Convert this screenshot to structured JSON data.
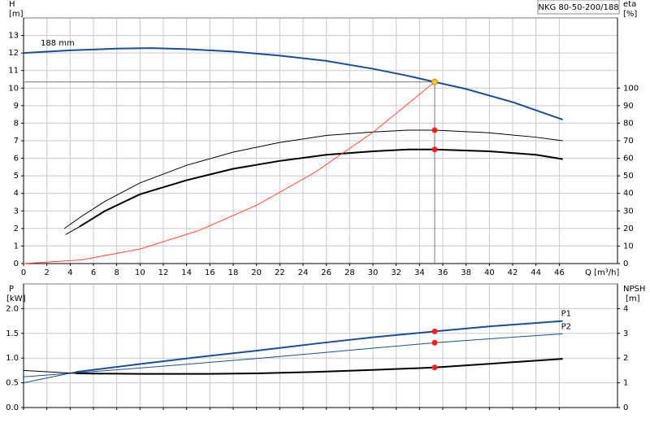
{
  "chart_data": [
    {
      "type": "line",
      "model": "NKG 80-50-200/188",
      "annotation": "188 mm",
      "ylabel": "H",
      "yunit": "[m]",
      "y2label": "eta",
      "y2unit": "[%]",
      "xlabel": "Q [m³/h]",
      "xlim": [
        0,
        51
      ],
      "xticks": [
        0,
        2,
        4,
        6,
        8,
        10,
        12,
        14,
        16,
        18,
        20,
        22,
        24,
        26,
        28,
        30,
        32,
        34,
        36,
        38,
        40,
        42,
        44,
        46
      ],
      "ylim": [
        0,
        14
      ],
      "yticks": [
        0,
        1,
        2,
        3,
        4,
        5,
        6,
        7,
        8,
        9,
        10,
        11,
        12,
        13
      ],
      "y2lim": [
        0,
        140
      ],
      "y2ticks": [
        0,
        10,
        20,
        30,
        40,
        50,
        60,
        70,
        80,
        90,
        100
      ],
      "grid": true,
      "series": [
        {
          "color": "#1f4e8c",
          "width": 2,
          "axis": "y",
          "x": [
            0,
            4,
            8,
            11,
            14,
            18,
            22,
            26,
            30,
            33,
            35.3,
            38,
            42,
            46.3
          ],
          "values": [
            12.0,
            12.15,
            12.25,
            12.28,
            12.22,
            12.08,
            11.85,
            11.55,
            11.1,
            10.7,
            10.35,
            9.95,
            9.2,
            8.2
          ]
        },
        {
          "color": "#000000",
          "width": 1,
          "axis": "y2",
          "x": [
            3.5,
            5,
            7,
            10,
            14,
            18,
            22,
            26,
            30,
            33,
            35.3,
            40,
            44,
            46.3
          ],
          "values": [
            20,
            27,
            35.5,
            46,
            56,
            63.5,
            69,
            73,
            75,
            76,
            76,
            74.5,
            72,
            70
          ]
        },
        {
          "color": "#000000",
          "width": 1,
          "axis": "y2",
          "x": [
            3.6,
            4.8
          ],
          "values": [
            16.5,
            21
          ]
        },
        {
          "color": "#000000",
          "width": 2,
          "axis": "y2",
          "x": [
            4.8,
            7,
            10,
            14,
            18,
            22,
            26,
            30,
            33,
            35.3,
            40,
            44,
            46.3
          ],
          "values": [
            21,
            30,
            39.5,
            47.5,
            54,
            58.5,
            62,
            64,
            65,
            65,
            64,
            62,
            59.5
          ]
        },
        {
          "color": "#ff4a3a",
          "width": 1,
          "axis": "y",
          "x": [
            0,
            5,
            10,
            15,
            20,
            25,
            30,
            35.3
          ],
          "values": [
            0,
            0.21,
            0.83,
            1.87,
            3.32,
            5.19,
            7.48,
            10.35
          ]
        }
      ],
      "markers": [
        {
          "x": 35.3,
          "y": 76,
          "axis": "y2",
          "color": "#ff2020"
        },
        {
          "x": 35.3,
          "y": 65,
          "axis": "y2",
          "color": "#ff2020"
        },
        {
          "x": 35.3,
          "y": 10.35,
          "axis": "y",
          "color": "#ffcc33"
        }
      ]
    },
    {
      "type": "line",
      "ylabel": "P",
      "yunit": "[kW]",
      "y2label": "NPSH",
      "y2unit": "[m]",
      "xlim": [
        0,
        51
      ],
      "xticks": [
        0,
        2,
        4,
        6,
        8,
        10,
        12,
        14,
        16,
        18,
        20,
        22,
        24,
        26,
        28,
        30,
        32,
        34,
        36,
        38,
        40,
        42,
        44,
        46
      ],
      "ylim": [
        0,
        2.5
      ],
      "yticks": [
        {
          "value": 0,
          "label": "0.0"
        },
        {
          "value": 0.5,
          "label": "0.5"
        },
        {
          "value": 1,
          "label": "1.0"
        },
        {
          "value": 1.5,
          "label": "1.5"
        },
        {
          "value": 2,
          "label": "2.0"
        }
      ],
      "y2lim": [
        0,
        5
      ],
      "y2ticks": [
        0,
        1,
        2,
        3,
        4
      ],
      "grid": true,
      "series": [
        {
          "name": "P1",
          "color": "#1f4e8c",
          "width": 2,
          "axis": "y",
          "x": [
            4.5,
            10,
            15,
            20,
            25,
            30,
            35.3,
            40,
            46.3
          ],
          "values": [
            0.72,
            0.88,
            1.02,
            1.15,
            1.29,
            1.42,
            1.54,
            1.64,
            1.75
          ]
        },
        {
          "color": "#1f4e8c",
          "width": 1,
          "axis": "y",
          "x": [
            0,
            4.5
          ],
          "values": [
            0.5,
            0.72
          ]
        },
        {
          "name": "P2",
          "color": "#1f4e8c",
          "width": 1,
          "axis": "y",
          "x": [
            0,
            10,
            20,
            30,
            35.3,
            40,
            46.3
          ],
          "values": [
            0.62,
            0.8,
            0.99,
            1.2,
            1.31,
            1.39,
            1.49
          ]
        },
        {
          "color": "#000000",
          "width": 1,
          "axis": "y2",
          "x": [
            0,
            4.5
          ],
          "values": [
            1.5,
            1.38
          ]
        },
        {
          "color": "#000000",
          "width": 2,
          "axis": "y2",
          "x": [
            4.5,
            10,
            15,
            20,
            25,
            30,
            35.3,
            40,
            46.3
          ],
          "values": [
            1.38,
            1.36,
            1.36,
            1.38,
            1.44,
            1.52,
            1.62,
            1.77,
            1.97
          ]
        }
      ],
      "markers": [
        {
          "x": 35.3,
          "y": 1.54,
          "axis": "y",
          "color": "#ff2020"
        },
        {
          "x": 35.3,
          "y": 1.31,
          "axis": "y",
          "color": "#ff2020"
        },
        {
          "x": 35.3,
          "y": 1.62,
          "axis": "y2",
          "color": "#ff2020"
        }
      ]
    }
  ]
}
